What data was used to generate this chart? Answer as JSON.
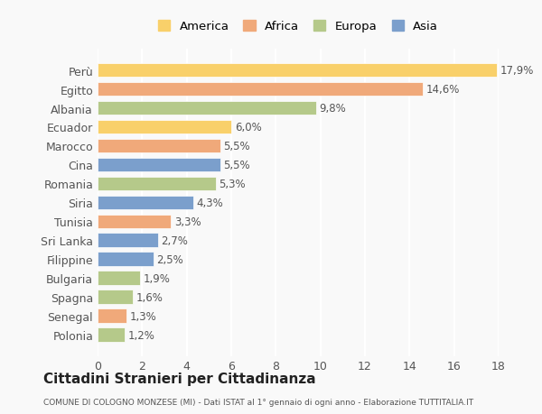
{
  "countries": [
    "Perù",
    "Egitto",
    "Albania",
    "Ecuador",
    "Marocco",
    "Cina",
    "Romania",
    "Siria",
    "Tunisia",
    "Sri Lanka",
    "Filippine",
    "Bulgaria",
    "Spagna",
    "Senegal",
    "Polonia"
  ],
  "values": [
    17.9,
    14.6,
    9.8,
    6.0,
    5.5,
    5.5,
    5.3,
    4.3,
    3.3,
    2.7,
    2.5,
    1.9,
    1.6,
    1.3,
    1.2
  ],
  "labels": [
    "17,9%",
    "14,6%",
    "9,8%",
    "6,0%",
    "5,5%",
    "5,5%",
    "5,3%",
    "4,3%",
    "3,3%",
    "2,7%",
    "2,5%",
    "1,9%",
    "1,6%",
    "1,3%",
    "1,2%"
  ],
  "continents": [
    "America",
    "Africa",
    "Europa",
    "America",
    "Africa",
    "Asia",
    "Europa",
    "Asia",
    "Africa",
    "Asia",
    "Asia",
    "Europa",
    "Europa",
    "Africa",
    "Europa"
  ],
  "colors": {
    "America": "#F9D06A",
    "Africa": "#F0A97A",
    "Europa": "#B5C98A",
    "Asia": "#7B9FCC"
  },
  "legend_order": [
    "America",
    "Africa",
    "Europa",
    "Asia"
  ],
  "title": "Cittadini Stranieri per Cittadinanza",
  "subtitle": "COMUNE DI COLOGNO MONZESE (MI) - Dati ISTAT al 1° gennaio di ogni anno - Elaborazione TUTTITALIA.IT",
  "xlim": [
    0,
    18
  ],
  "xticks": [
    0,
    2,
    4,
    6,
    8,
    10,
    12,
    14,
    16,
    18
  ],
  "background_color": "#f9f9f9",
  "grid_color": "#ffffff",
  "bar_edge_color": "#ffffff"
}
